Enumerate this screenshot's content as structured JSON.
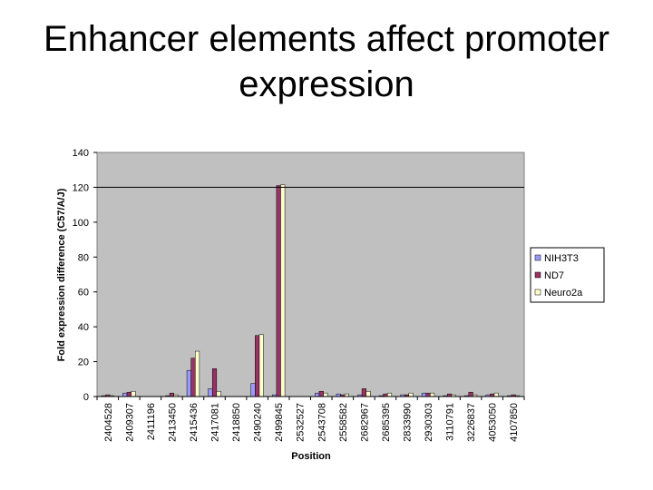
{
  "slide": {
    "title_line1": "Enhancer elements affect promoter",
    "title_line2": "expression"
  },
  "chart_data": {
    "type": "bar",
    "title": "",
    "xlabel": "Position",
    "ylabel": "Fold expression difference (C57/A/J)",
    "ylim": [
      0,
      140
    ],
    "yticks": [
      0,
      20,
      40,
      60,
      80,
      100,
      120,
      140
    ],
    "reference_line": 120,
    "grid": false,
    "legend": "right",
    "categories": [
      "2404528",
      "2409307",
      "2411196",
      "2413450",
      "2415436",
      "2417081",
      "2418850",
      "2490240",
      "2499845",
      "2532527",
      "2543708",
      "2558582",
      "2682967",
      "2685395",
      "2833990",
      "2930303",
      "3110791",
      "3226837",
      "4053050",
      "4107850"
    ],
    "series": [
      {
        "name": "NIH3T3",
        "color": "#9999ff",
        "values": [
          0.5,
          2,
          0,
          0.5,
          15,
          4.5,
          0,
          7.5,
          1,
          0,
          2,
          1.5,
          1,
          0.5,
          1,
          2,
          0.5,
          0.5,
          1,
          0.5
        ]
      },
      {
        "name": "ND7",
        "color": "#993366",
        "values": [
          1,
          2.5,
          0,
          2,
          22,
          16,
          0,
          35,
          121,
          0,
          3,
          1,
          4.5,
          1.5,
          1,
          2,
          1.5,
          2.5,
          1.5,
          1
        ]
      },
      {
        "name": "Neuro2a",
        "color": "#ffffcc",
        "values": [
          0.5,
          3,
          0,
          1,
          26,
          3,
          0,
          35.5,
          121.5,
          0,
          2,
          1.5,
          3,
          2,
          2,
          2,
          1,
          1,
          2,
          0.5
        ]
      }
    ]
  }
}
